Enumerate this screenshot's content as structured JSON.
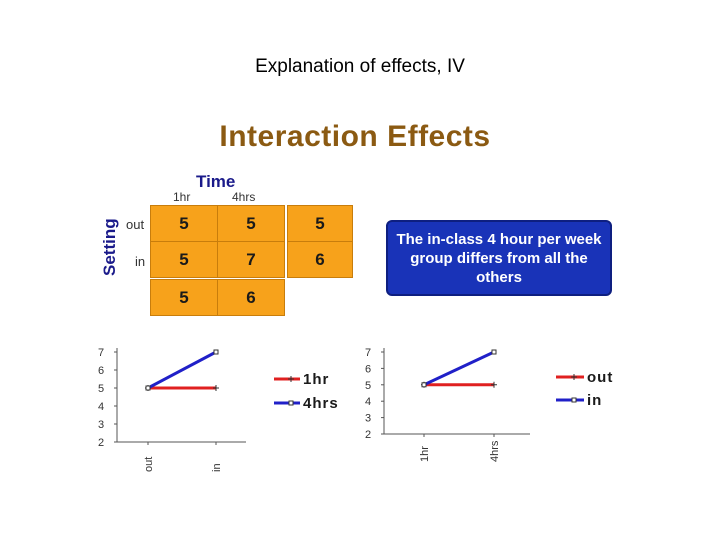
{
  "slide_title": "Explanation of effects, IV",
  "heading": "Interaction Effects",
  "table": {
    "col_axis_label": "Time",
    "row_axis_label": "Setting",
    "columns": [
      "1hr",
      "4hrs"
    ],
    "rows": [
      {
        "label": "out",
        "values": [
          "5",
          "5",
          "5"
        ]
      },
      {
        "label": "in",
        "values": [
          "5",
          "7",
          "6"
        ]
      },
      {
        "label": "",
        "values": [
          "5",
          "6"
        ]
      }
    ]
  },
  "callout": "The in-class 4 hour per week group differs from all the others",
  "colors": {
    "cell": "#f7a21b",
    "callout": "#1933b8",
    "red": "#e02020",
    "blue": "#2020c8"
  },
  "chart_data": [
    {
      "type": "line",
      "categories": [
        "out",
        "in"
      ],
      "series": [
        {
          "name": "1hr",
          "values": [
            5,
            5
          ],
          "color": "#e02020",
          "marker": "plus"
        },
        {
          "name": "4hrs",
          "values": [
            5,
            7
          ],
          "color": "#2020c8",
          "marker": "square"
        }
      ],
      "ylim": [
        2,
        7
      ],
      "yticks": [
        2,
        3,
        4,
        5,
        6,
        7
      ],
      "legend": "right"
    },
    {
      "type": "line",
      "categories": [
        "1hr",
        "4hrs"
      ],
      "series": [
        {
          "name": "out",
          "values": [
            5,
            5
          ],
          "color": "#e02020",
          "marker": "plus"
        },
        {
          "name": "in",
          "values": [
            5,
            7
          ],
          "color": "#2020c8",
          "marker": "square"
        }
      ],
      "ylim": [
        2,
        7
      ],
      "yticks": [
        2,
        3,
        4,
        5,
        6,
        7
      ],
      "legend": "right"
    }
  ]
}
